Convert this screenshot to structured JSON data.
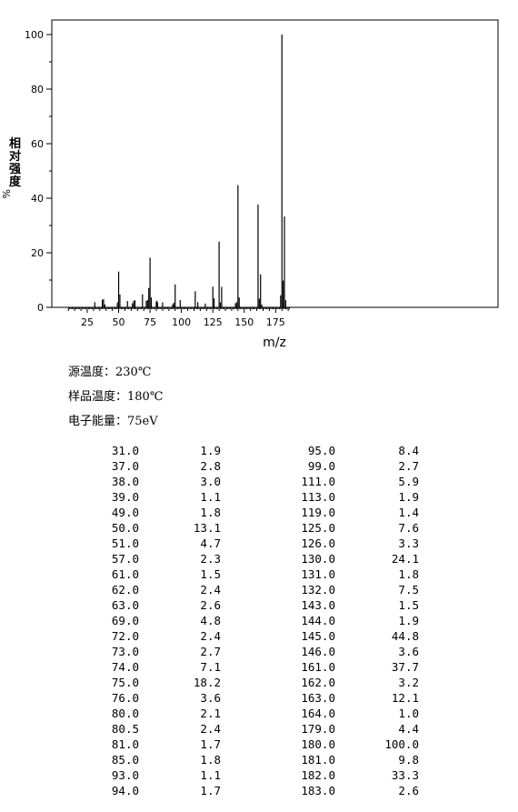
{
  "chart_data": {
    "type": "bar",
    "xlabel": "m/z",
    "ylabel_chars": [
      "相",
      "对",
      "强",
      "度"
    ],
    "ylabel_suffix": "%",
    "xlim": [
      10,
      186
    ],
    "ylim": [
      0,
      100
    ],
    "xticks": [
      25,
      50,
      75,
      100,
      125,
      150,
      175
    ],
    "yticks": [
      0,
      20,
      40,
      60,
      80,
      100
    ],
    "peaks": [
      [
        31.0,
        1.9
      ],
      [
        37.0,
        2.8
      ],
      [
        38.0,
        3.0
      ],
      [
        39.0,
        1.1
      ],
      [
        49.0,
        1.8
      ],
      [
        50.0,
        13.1
      ],
      [
        51.0,
        4.7
      ],
      [
        57.0,
        2.3
      ],
      [
        61.0,
        1.5
      ],
      [
        62.0,
        2.4
      ],
      [
        63.0,
        2.6
      ],
      [
        69.0,
        4.8
      ],
      [
        72.0,
        2.4
      ],
      [
        73.0,
        2.7
      ],
      [
        74.0,
        7.1
      ],
      [
        75.0,
        18.2
      ],
      [
        76.0,
        3.6
      ],
      [
        80.0,
        2.1
      ],
      [
        80.5,
        2.4
      ],
      [
        81.0,
        1.7
      ],
      [
        85.0,
        1.8
      ],
      [
        93.0,
        1.1
      ],
      [
        94.0,
        1.7
      ],
      [
        95.0,
        8.4
      ],
      [
        99.0,
        2.7
      ],
      [
        111.0,
        5.9
      ],
      [
        113.0,
        1.9
      ],
      [
        119.0,
        1.4
      ],
      [
        125.0,
        7.6
      ],
      [
        126.0,
        3.3
      ],
      [
        130.0,
        24.1
      ],
      [
        131.0,
        1.8
      ],
      [
        132.0,
        7.5
      ],
      [
        143.0,
        1.5
      ],
      [
        144.0,
        1.9
      ],
      [
        145.0,
        44.8
      ],
      [
        146.0,
        3.6
      ],
      [
        161.0,
        37.7
      ],
      [
        162.0,
        3.2
      ],
      [
        163.0,
        12.1
      ],
      [
        164.0,
        1.0
      ],
      [
        179.0,
        4.4
      ],
      [
        180.0,
        100.0
      ],
      [
        181.0,
        9.8
      ],
      [
        182.0,
        33.3
      ],
      [
        183.0,
        2.6
      ]
    ]
  },
  "conditions": [
    "源温度：230℃",
    "样品温度：180℃",
    "电子能量：75eV"
  ],
  "table_rows": [
    [
      "31.0",
      "1.9",
      "95.0",
      "8.4"
    ],
    [
      "37.0",
      "2.8",
      "99.0",
      "2.7"
    ],
    [
      "38.0",
      "3.0",
      "111.0",
      "5.9"
    ],
    [
      "39.0",
      "1.1",
      "113.0",
      "1.9"
    ],
    [
      "49.0",
      "1.8",
      "119.0",
      "1.4"
    ],
    [
      "50.0",
      "13.1",
      "125.0",
      "7.6"
    ],
    [
      "51.0",
      "4.7",
      "126.0",
      "3.3"
    ],
    [
      "57.0",
      "2.3",
      "130.0",
      "24.1"
    ],
    [
      "61.0",
      "1.5",
      "131.0",
      "1.8"
    ],
    [
      "62.0",
      "2.4",
      "132.0",
      "7.5"
    ],
    [
      "63.0",
      "2.6",
      "143.0",
      "1.5"
    ],
    [
      "69.0",
      "4.8",
      "144.0",
      "1.9"
    ],
    [
      "72.0",
      "2.4",
      "145.0",
      "44.8"
    ],
    [
      "73.0",
      "2.7",
      "146.0",
      "3.6"
    ],
    [
      "74.0",
      "7.1",
      "161.0",
      "37.7"
    ],
    [
      "75.0",
      "18.2",
      "162.0",
      "3.2"
    ],
    [
      "76.0",
      "3.6",
      "163.0",
      "12.1"
    ],
    [
      "80.0",
      "2.1",
      "164.0",
      "1.0"
    ],
    [
      "80.5",
      "2.4",
      "179.0",
      "4.4"
    ],
    [
      "81.0",
      "1.7",
      "180.0",
      "100.0"
    ],
    [
      "85.0",
      "1.8",
      "181.0",
      "9.8"
    ],
    [
      "93.0",
      "1.1",
      "182.0",
      "33.3"
    ],
    [
      "94.0",
      "1.7",
      "183.0",
      "2.6"
    ]
  ]
}
